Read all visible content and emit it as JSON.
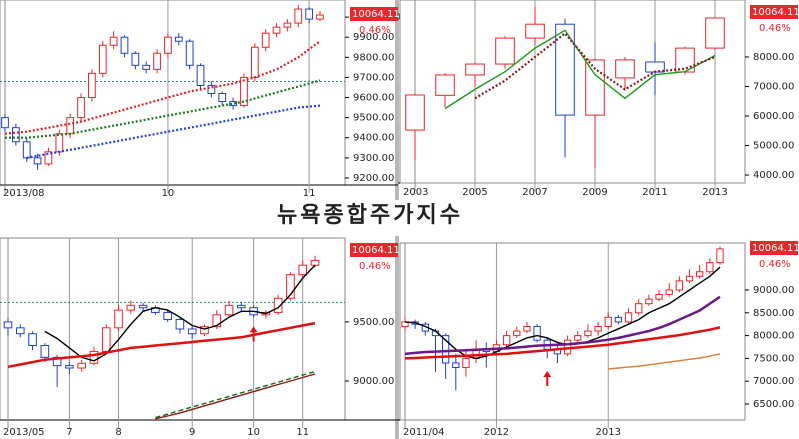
{
  "title": "뉴욕종합주가지수",
  "chart_data": [
    {
      "type": "candlestick",
      "categories": [
        "2013/08",
        null,
        null,
        null,
        null,
        null,
        null,
        null,
        null,
        null,
        null,
        null,
        null,
        null,
        null,
        "10",
        null,
        null,
        null,
        null,
        null,
        null,
        null,
        null,
        null,
        null,
        null,
        null,
        "11",
        null
      ],
      "open": [
        9500,
        9450,
        9380,
        9300,
        9270,
        9330,
        9420,
        9500,
        9600,
        9720,
        9860,
        9900,
        9820,
        9760,
        9740,
        9820,
        9900,
        9880,
        9760,
        9660,
        9620,
        9580,
        9560,
        9700,
        9850,
        9920,
        9950,
        9970,
        10040,
        9990
      ],
      "high": [
        9520,
        9470,
        9400,
        9320,
        9350,
        9440,
        9520,
        9620,
        9740,
        9880,
        9930,
        9910,
        9830,
        9780,
        9840,
        9920,
        9920,
        9890,
        9770,
        9680,
        9630,
        9600,
        9720,
        9870,
        9940,
        9970,
        9990,
        10060,
        10050,
        10030
      ],
      "low": [
        9430,
        9360,
        9280,
        9240,
        9260,
        9310,
        9400,
        9480,
        9580,
        9700,
        9840,
        9800,
        9740,
        9720,
        9720,
        9800,
        9860,
        9740,
        9640,
        9600,
        9560,
        9540,
        9550,
        9680,
        9830,
        9900,
        9930,
        9950,
        9970,
        9980
      ],
      "close": [
        9450,
        9380,
        9300,
        9270,
        9330,
        9420,
        9500,
        9600,
        9720,
        9860,
        9900,
        9820,
        9760,
        9740,
        9820,
        9900,
        9880,
        9760,
        9660,
        9620,
        9580,
        9560,
        9700,
        9850,
        9920,
        9950,
        9970,
        10040,
        9990,
        10010
      ],
      "series": [
        {
          "color": "#e02020",
          "style": "dotted",
          "values": [
            9420,
            9425,
            9430,
            9440,
            9450,
            9460,
            9470,
            9480,
            9495,
            9510,
            9525,
            9540,
            9555,
            9570,
            9585,
            9600,
            9615,
            9630,
            9640,
            9650,
            9660,
            9670,
            9685,
            9700,
            9720,
            9740,
            9770,
            9800,
            9840,
            9880
          ]
        },
        {
          "color": "#1a7a1a",
          "style": "dotted",
          "values": [
            9400,
            9400,
            9400,
            9405,
            9410,
            9415,
            9420,
            9430,
            9440,
            9450,
            9460,
            9470,
            9480,
            9490,
            9500,
            9510,
            9520,
            9530,
            9540,
            9550,
            9560,
            9570,
            9580,
            9595,
            9610,
            9625,
            9640,
            9655,
            9670,
            9685
          ]
        },
        {
          "color": "#2040e0",
          "style": "dotted",
          "values": [
            null,
            null,
            9300,
            9310,
            9320,
            9330,
            9340,
            9350,
            9360,
            9370,
            9380,
            9390,
            9400,
            9410,
            9420,
            9430,
            9440,
            9450,
            9460,
            9470,
            9480,
            9490,
            9500,
            9510,
            9520,
            9530,
            9540,
            9550,
            9555,
            9560
          ]
        }
      ],
      "hline": 9680,
      "up_color": "#e8262b",
      "down_color": "#1f3fd6",
      "ylim": [
        9165,
        10085
      ],
      "yticks": [
        {
          "value": 9200,
          "label": "9200.00"
        },
        {
          "value": 9300,
          "label": "9300.00"
        },
        {
          "value": 9400,
          "label": "9400.00"
        },
        {
          "value": 9500,
          "label": "9500.00"
        },
        {
          "value": 9600,
          "label": "9600.00"
        },
        {
          "value": 9700,
          "label": "9700.00"
        },
        {
          "value": 9800,
          "label": "9800.00"
        },
        {
          "value": 9900,
          "label": "9900.00"
        },
        {
          "value": 10000,
          "label": "10000.00"
        }
      ],
      "last_price_label": "10064.11",
      "change_label": "0.46%"
    },
    {
      "type": "candlestick",
      "categories": [
        "2003",
        null,
        "2005",
        null,
        "2007",
        null,
        "2009",
        null,
        "2011",
        null,
        "2013"
      ],
      "open": [
        5525,
        6700,
        7390,
        7760,
        8640,
        9110,
        6030,
        7290,
        7830,
        7490,
        8300
      ],
      "high": [
        6750,
        7450,
        7800,
        8700,
        9700,
        9300,
        7950,
        8000,
        8500,
        8350,
        9350
      ],
      "low": [
        4500,
        6300,
        7000,
        7600,
        8400,
        4600,
        4250,
        6900,
        6700,
        7400,
        8250
      ],
      "close": [
        6712,
        7390,
        7760,
        8640,
        9110,
        6030,
        7900,
        7900,
        7490,
        8300,
        9320
      ],
      "series": [
        {
          "color": "#1a9a1a",
          "style": "solid",
          "values": [
            null,
            6250,
            6900,
            7500,
            8300,
            8900,
            7400,
            6600,
            7400,
            7500,
            8050
          ]
        },
        {
          "color": "#8b1a1a",
          "style": "dotted",
          "values": [
            null,
            null,
            6600,
            7200,
            8000,
            8800,
            7600,
            6900,
            7500,
            7600,
            8000
          ]
        }
      ],
      "up_color": "#e8262b",
      "down_color": "#1f3fd6",
      "ylim": [
        3730,
        9930
      ],
      "yticks": [
        {
          "value": 4000,
          "label": "4000.00"
        },
        {
          "value": 5000,
          "label": "5000.00"
        },
        {
          "value": 6000,
          "label": "6000.00"
        },
        {
          "value": 7000,
          "label": "7000.00"
        },
        {
          "value": 8000,
          "label": "8000.00"
        }
      ],
      "last_price_label": "10064.11",
      "change_label": "0.46%"
    },
    {
      "type": "candlestick",
      "categories": [
        "2013/05",
        null,
        null,
        null,
        null,
        "7",
        null,
        null,
        null,
        "8",
        null,
        null,
        null,
        null,
        null,
        "9",
        null,
        null,
        null,
        null,
        "10",
        null,
        null,
        null,
        "11",
        null
      ],
      "open": [
        9500,
        9450,
        9400,
        9300,
        9200,
        9130,
        9110,
        9150,
        9250,
        9450,
        9600,
        9640,
        9620,
        9580,
        9520,
        9440,
        9400,
        9460,
        9560,
        9640,
        9620,
        9560,
        9580,
        9700,
        9900,
        9980
      ],
      "high": [
        9530,
        9480,
        9420,
        9320,
        9220,
        9160,
        9180,
        9290,
        9480,
        9640,
        9680,
        9660,
        9640,
        9600,
        9540,
        9460,
        9480,
        9600,
        9680,
        9670,
        9640,
        9600,
        9730,
        9920,
        10020,
        10060
      ],
      "low": [
        9380,
        9370,
        9260,
        9160,
        8950,
        9060,
        9080,
        9130,
        9230,
        9420,
        9570,
        9590,
        9560,
        9500,
        9400,
        9360,
        9380,
        9440,
        9540,
        9580,
        9540,
        9530,
        9560,
        9680,
        9880,
        9960
      ],
      "close": [
        9450,
        9400,
        9300,
        9200,
        9130,
        9110,
        9150,
        9250,
        9450,
        9600,
        9640,
        9620,
        9580,
        9520,
        9440,
        9400,
        9460,
        9560,
        9640,
        9620,
        9560,
        9580,
        9700,
        9900,
        9980,
        10020
      ],
      "series": [
        {
          "color": "#000000",
          "style": "solid",
          "values": [
            null,
            null,
            null,
            9420,
            9360,
            9280,
            9200,
            9170,
            9230,
            9350,
            9480,
            9590,
            9620,
            9600,
            9540,
            9470,
            9440,
            9470,
            9540,
            9590,
            9590,
            9570,
            9620,
            9730,
            9870,
            9980
          ]
        },
        {
          "color": "#e01010",
          "style": "thick",
          "values": [
            9120,
            9140,
            9160,
            9180,
            9190,
            9200,
            9210,
            9220,
            9240,
            9260,
            9280,
            9290,
            9300,
            9310,
            9320,
            9330,
            9340,
            9350,
            9360,
            9370,
            9390,
            9410,
            9430,
            9450,
            9470,
            9490
          ]
        },
        {
          "color": "#1a6a1a",
          "style": "dashed",
          "values": [
            null,
            null,
            null,
            null,
            null,
            null,
            null,
            null,
            null,
            null,
            null,
            null,
            8690,
            8720,
            8750,
            8780,
            8810,
            8840,
            8870,
            8900,
            8930,
            8960,
            8990,
            9020,
            9050,
            9080
          ]
        },
        {
          "color": "#8b1a1a",
          "style": "solid",
          "values": [
            null,
            null,
            null,
            null,
            null,
            null,
            null,
            null,
            null,
            null,
            null,
            null,
            8680,
            8705,
            8730,
            8760,
            8790,
            8820,
            8850,
            8880,
            8910,
            8940,
            8970,
            9000,
            9030,
            9060
          ]
        }
      ],
      "hline": 9665,
      "arrow_index": 20,
      "up_color": "#e8262b",
      "down_color": "#1f3fd6",
      "ylim": [
        8670,
        10210
      ],
      "yticks": [
        {
          "value": 9000,
          "label": "9000.00"
        },
        {
          "value": 9500,
          "label": "9500.00"
        }
      ],
      "last_price_label": "10064.11",
      "change_label": "0.46%"
    },
    {
      "type": "candlestick",
      "categories": [
        "2011/04",
        null,
        null,
        null,
        null,
        null,
        null,
        null,
        null,
        "2012",
        null,
        null,
        null,
        null,
        null,
        null,
        null,
        null,
        null,
        null,
        "2013",
        null,
        null,
        null,
        null,
        null,
        null,
        null,
        null,
        null,
        null,
        null
      ],
      "open": [
        8200,
        8300,
        8250,
        8100,
        8000,
        7400,
        7300,
        7500,
        7700,
        7650,
        7800,
        8000,
        8100,
        8200,
        7900,
        7700,
        7600,
        7900,
        8000,
        8100,
        8200,
        8400,
        8300,
        8500,
        8700,
        8800,
        8900,
        9000,
        9200,
        9300,
        9400,
        9600
      ],
      "high": [
        8400,
        8350,
        8300,
        8150,
        8050,
        7600,
        7700,
        7900,
        7850,
        7900,
        8100,
        8200,
        8300,
        8250,
        7950,
        7800,
        8000,
        8100,
        8250,
        8300,
        8500,
        8450,
        8600,
        8800,
        8900,
        9000,
        9150,
        9300,
        9450,
        9550,
        9700,
        9950
      ],
      "low": [
        8100,
        8150,
        8000,
        7200,
        7050,
        6800,
        7100,
        7400,
        7300,
        7600,
        7750,
        7950,
        8050,
        7850,
        7500,
        7400,
        7550,
        7850,
        7950,
        8000,
        8150,
        8250,
        8250,
        8450,
        8650,
        8750,
        8850,
        8950,
        9150,
        9250,
        9350,
        9550
      ],
      "close": [
        8300,
        8250,
        8100,
        8000,
        7400,
        7300,
        7500,
        7700,
        7650,
        7800,
        8000,
        8100,
        8200,
        7900,
        7700,
        7600,
        7900,
        8000,
        8100,
        8200,
        8400,
        8300,
        8500,
        8700,
        8800,
        8900,
        9000,
        9200,
        9300,
        9400,
        9600,
        9900
      ],
      "series": [
        {
          "color": "#000000",
          "style": "solid",
          "values": [
            8300,
            8280,
            8200,
            8100,
            7900,
            7700,
            7550,
            7500,
            7550,
            7650,
            7750,
            7850,
            7950,
            8000,
            7950,
            7850,
            7800,
            7820,
            7870,
            7950,
            8050,
            8150,
            8250,
            8350,
            8500,
            8600,
            8700,
            8850,
            9000,
            9150,
            9300,
            9500
          ]
        },
        {
          "color": "#6a1a8a",
          "style": "thick",
          "values": [
            7600,
            7620,
            7640,
            7650,
            7660,
            7670,
            7680,
            7690,
            7700,
            7710,
            7720,
            7740,
            7760,
            7780,
            7790,
            7800,
            7810,
            7830,
            7850,
            7880,
            7910,
            7950,
            8000,
            8050,
            8100,
            8170,
            8250,
            8350,
            8450,
            8550,
            8700,
            8850
          ]
        },
        {
          "color": "#e01010",
          "style": "thick",
          "values": [
            7500,
            7510,
            7520,
            7530,
            7540,
            7550,
            7560,
            7570,
            7580,
            7590,
            7600,
            7620,
            7640,
            7660,
            7680,
            7700,
            7720,
            7740,
            7760,
            7780,
            7800,
            7830,
            7860,
            7890,
            7920,
            7950,
            7980,
            8010,
            8050,
            8090,
            8130,
            8180
          ]
        },
        {
          "color": "#e07a30",
          "style": "solid",
          "values": [
            null,
            null,
            null,
            null,
            null,
            null,
            null,
            null,
            null,
            null,
            null,
            null,
            null,
            null,
            null,
            null,
            null,
            null,
            null,
            null,
            7270,
            7290,
            7310,
            7330,
            7360,
            7390,
            7420,
            7450,
            7480,
            7510,
            7550,
            7600
          ]
        }
      ],
      "arrow_index": 14,
      "up_color": "#e8262b",
      "down_color": "#1f3fd6",
      "ylim": [
        6150,
        10030
      ],
      "yticks": [
        {
          "value": 6500,
          "label": "6500.00"
        },
        {
          "value": 7000,
          "label": "7000.00"
        },
        {
          "value": 7500,
          "label": "7500.00"
        },
        {
          "value": 8000,
          "label": "8000.00"
        },
        {
          "value": 8500,
          "label": "8500.00"
        },
        {
          "value": 9000,
          "label": "9000.00"
        }
      ],
      "last_price_label": "10064.11",
      "change_label": "0.46%"
    }
  ]
}
